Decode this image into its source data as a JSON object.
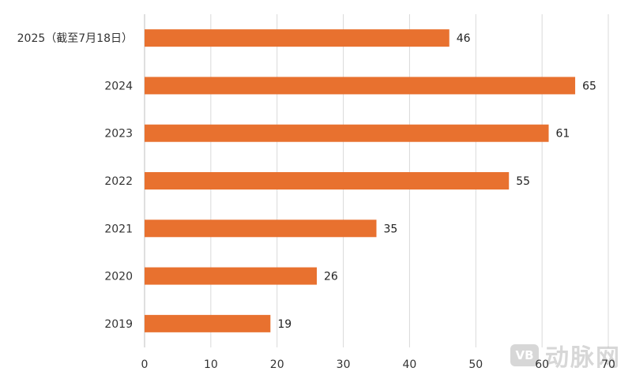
{
  "chart_data": {
    "type": "bar",
    "orientation": "horizontal",
    "categories": [
      "2025（截至7月18日）",
      "2024",
      "2023",
      "2022",
      "2021",
      "2020",
      "2019"
    ],
    "values": [
      46,
      65,
      61,
      55,
      35,
      26,
      19
    ],
    "xlim": [
      0,
      70
    ],
    "xticks": [
      0,
      10,
      20,
      30,
      40,
      50,
      60,
      70
    ],
    "grid": "vertical",
    "bar_color": "#E8712F",
    "data_labels": true
  },
  "watermark": {
    "badge": "VB",
    "text": "动脉网"
  }
}
